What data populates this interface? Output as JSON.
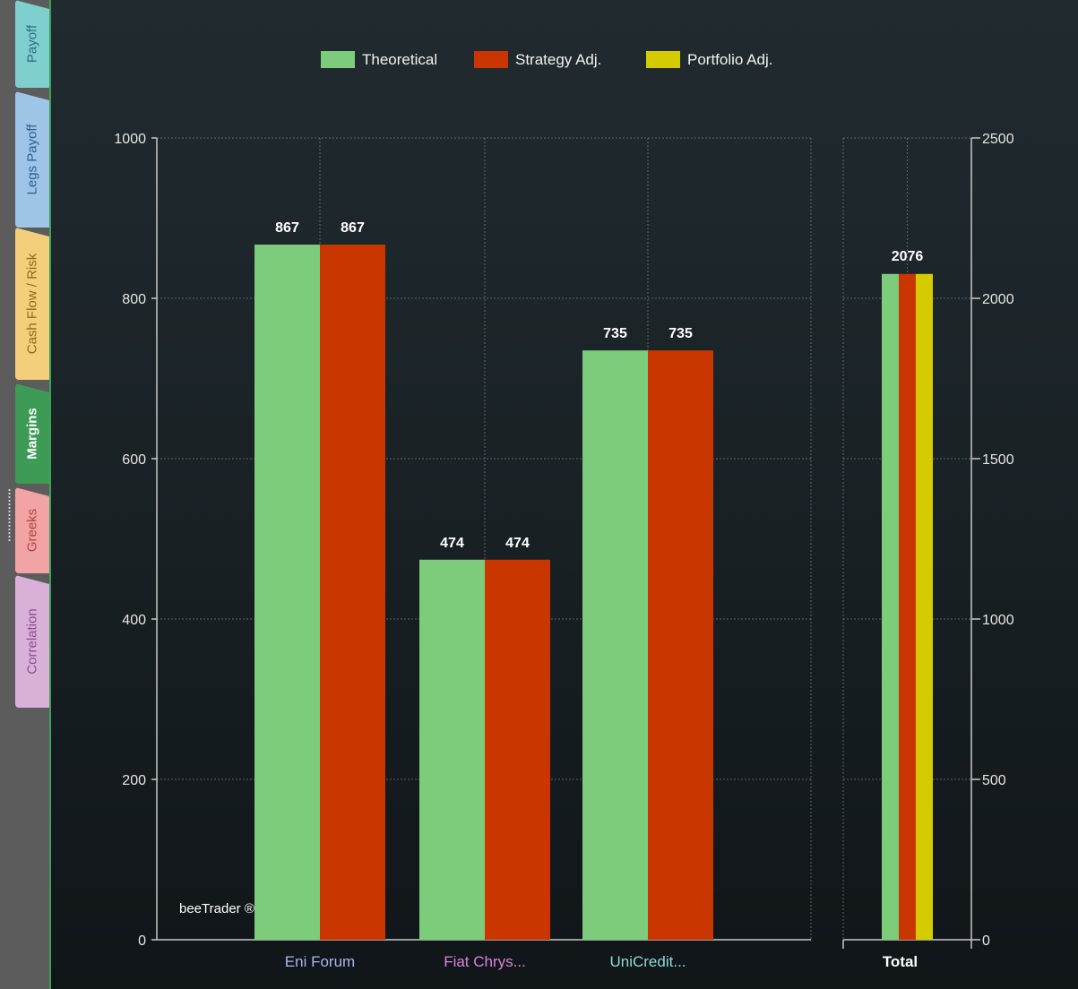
{
  "sidebar": {
    "tabs": [
      {
        "label": "Payoff",
        "bg": "#7fcfcf",
        "fg": "#2a6f7a",
        "active": false
      },
      {
        "label": "Legs Payoff",
        "bg": "#9ec4e8",
        "fg": "#2e5f8e",
        "active": false
      },
      {
        "label": "Cash Flow / Risk",
        "bg": "#f3cf7c",
        "fg": "#8a6a1a",
        "active": false
      },
      {
        "label": "Margins",
        "bg": "#3d9b56",
        "fg": "#ffffff",
        "active": true
      },
      {
        "label": "Greeks",
        "bg": "#f2a3a3",
        "fg": "#b04545",
        "active": false
      },
      {
        "label": "Correlation",
        "bg": "#d9b1d8",
        "fg": "#8a4f8a",
        "active": false
      }
    ]
  },
  "brand": "beeTrader ®",
  "chart_data": [
    {
      "type": "bar",
      "legend": [
        {
          "name": "Theoretical",
          "color": "#7ccc7c"
        },
        {
          "name": "Strategy Adj.",
          "color": "#c93600"
        },
        {
          "name": "Portfolio Adj.",
          "color": "#d4cc00"
        }
      ],
      "legend_position": "top-center",
      "categories": [
        "Eni Forum",
        "Fiat Chrys...",
        "UniCredit..."
      ],
      "category_colors": [
        "#aab4f2",
        "#dd80dd",
        "#8edad4"
      ],
      "series": [
        {
          "name": "Theoretical",
          "color": "#7ccc7c",
          "values": [
            867,
            474,
            735
          ]
        },
        {
          "name": "Strategy Adj.",
          "color": "#c93600",
          "values": [
            867,
            474,
            735
          ]
        }
      ],
      "data_labels": [
        [
          867,
          474,
          735
        ],
        [
          867,
          474,
          735
        ]
      ],
      "ylim": [
        0,
        1000
      ],
      "yticks": [
        0,
        200,
        400,
        600,
        800,
        1000
      ],
      "axis": "left",
      "grid": true
    },
    {
      "type": "bar",
      "categories": [
        "Total"
      ],
      "category_colors": [
        "#ffffff"
      ],
      "series": [
        {
          "name": "Theoretical",
          "color": "#7ccc7c",
          "values": [
            2076
          ]
        },
        {
          "name": "Strategy Adj.",
          "color": "#c93600",
          "values": [
            2076
          ]
        },
        {
          "name": "Portfolio Adj.",
          "color": "#d4cc00",
          "values": [
            2076
          ]
        }
      ],
      "data_labels": [
        2076
      ],
      "ylim": [
        0,
        2500
      ],
      "yticks": [
        0,
        500,
        1000,
        1500,
        2000,
        2500
      ],
      "axis": "right",
      "grid": true
    }
  ]
}
